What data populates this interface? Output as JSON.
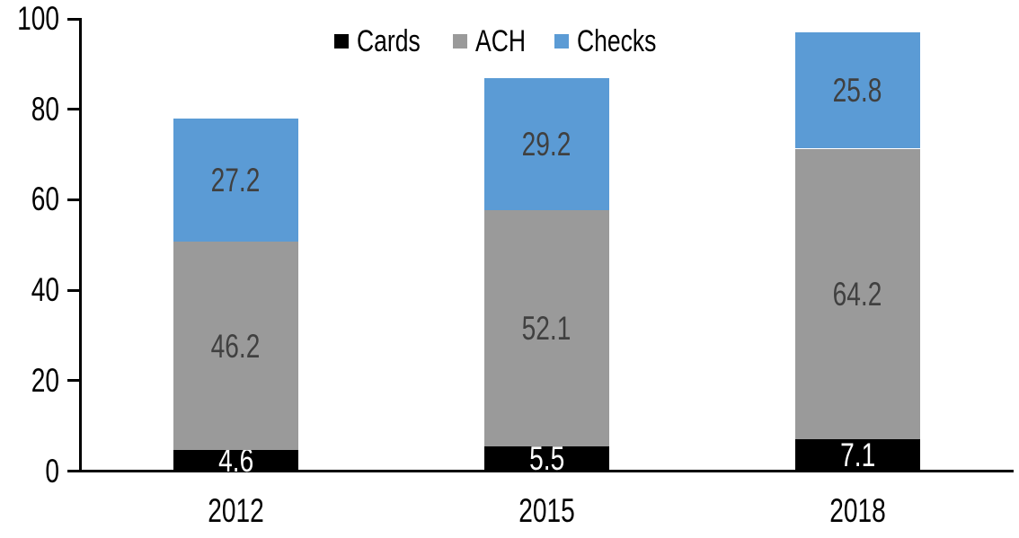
{
  "chart_data": {
    "type": "bar",
    "stacked": true,
    "title": "",
    "xlabel": "",
    "ylabel": "",
    "categories": [
      "2012",
      "2015",
      "2018"
    ],
    "series": [
      {
        "name": "Cards",
        "color": "#000000",
        "label_color": "#ffffff",
        "values": [
          4.6,
          5.5,
          7.1
        ]
      },
      {
        "name": "ACH",
        "color": "#9A9A9A",
        "label_color": "#404040",
        "values": [
          46.2,
          52.1,
          64.2
        ]
      },
      {
        "name": "Checks",
        "color": "#5B9BD5",
        "label_color": "#404040",
        "values": [
          27.2,
          29.2,
          25.8
        ]
      }
    ],
    "totals": [
      78.0,
      86.8,
      97.1
    ],
    "ylim": [
      0,
      100
    ],
    "yticks": [
      0,
      20,
      40,
      60,
      80,
      100
    ],
    "grid": false,
    "legend_position": "top-center",
    "axis_color": "#000000",
    "background_color": "#ffffff"
  }
}
